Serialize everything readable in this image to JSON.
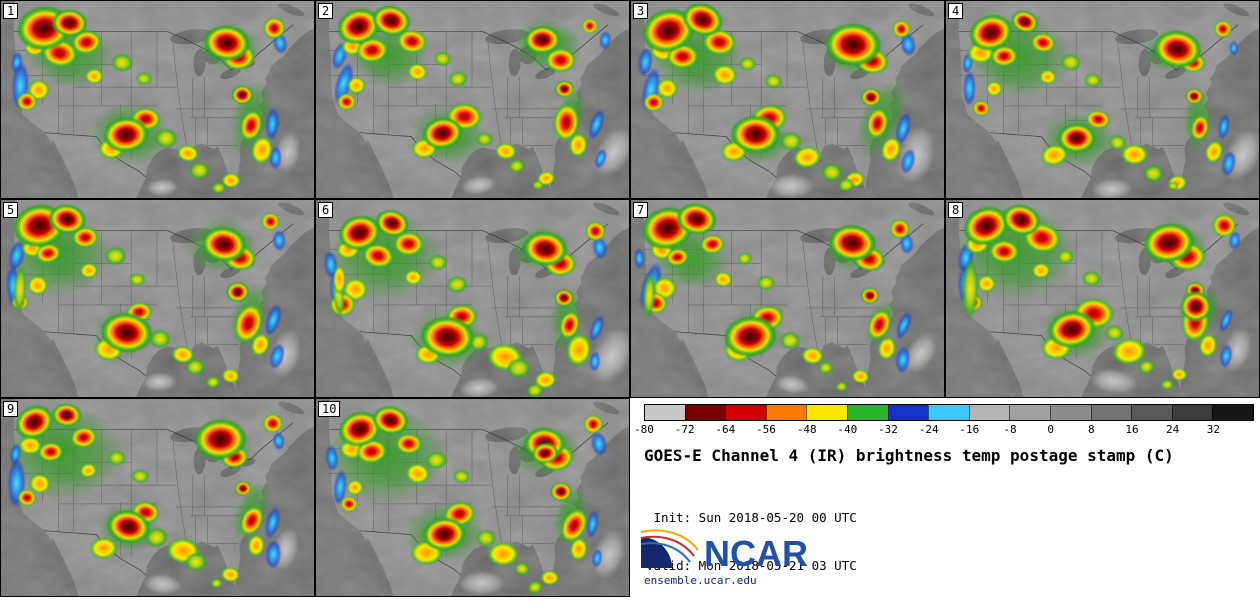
{
  "legend": {
    "init_line": " Init: Sun 2018-05-20 00 UTC",
    "valid_line": "Valid: Mon 2018-05-21 03 UTC",
    "footer": "ensemble.ucar.edu",
    "logo_text": "NCAR"
  },
  "chart_data": {
    "type": "heatmap",
    "description": "10-member ensemble postage-stamp maps of GOES-E Channel 4 IR brightness temperature over the CONUS",
    "title": "GOES-E Channel 4 (IR) brightness temp postage stamp (C)",
    "init": "Sun 2018-05-20 00 UTC",
    "valid": "Mon 2018-05-21 03 UTC",
    "colorbar": {
      "unit": "C",
      "range": [
        -80,
        40
      ],
      "ticks": [
        "-80",
        "-72",
        "-64",
        "-56",
        "-48",
        "-40",
        "-32",
        "-24",
        "-16",
        "-8",
        "0",
        "8",
        "16",
        "24",
        "32"
      ],
      "segment_colors": [
        "#c8c8c8",
        "#780000",
        "#d20000",
        "#ff7800",
        "#ffe600",
        "#28b428",
        "#1432c8",
        "#3cc8ff",
        "#b4b4b4",
        "#a0a0a0",
        "#8c8c8c",
        "#737373",
        "#595959",
        "#3c3c3c",
        "#161616"
      ]
    },
    "jitter": 0.028,
    "panels": [
      {
        "label": "1",
        "dx": 0,
        "dy": 0,
        "s": 1.0
      },
      {
        "label": "2",
        "dx": 0.012,
        "dy": -0.01,
        "s": 0.95
      },
      {
        "label": "3",
        "dx": -0.008,
        "dy": 0.008,
        "s": 1.05
      },
      {
        "label": "4",
        "dx": 0.015,
        "dy": 0.012,
        "s": 0.92
      },
      {
        "label": "5",
        "dx": -0.012,
        "dy": -0.008,
        "s": 1.0,
        "extras": [
          {
            "x": 0.075,
            "y": 0.47,
            "rx": 0.02,
            "ry": 0.12,
            "t": "weak",
            "rot": 5
          }
        ]
      },
      {
        "label": "6",
        "dx": 0.01,
        "dy": 0.015,
        "s": 1.06,
        "extras": [
          {
            "x": 0.075,
            "y": 0.47,
            "rx": 0.02,
            "ry": 0.12,
            "t": "weak",
            "rot": 5
          },
          {
            "x": 0.07,
            "y": 0.38,
            "rx": 0.015,
            "ry": 0.06,
            "t": "mod",
            "rot": 5
          }
        ]
      },
      {
        "label": "7",
        "dx": -0.015,
        "dy": 0.01,
        "s": 0.95,
        "extras": [
          {
            "x": 0.075,
            "y": 0.47,
            "rx": 0.02,
            "ry": 0.12,
            "t": "weak",
            "rot": 5
          }
        ]
      },
      {
        "label": "8",
        "dx": 0.008,
        "dy": -0.012,
        "s": 1.08,
        "extras": [
          {
            "x": 0.075,
            "y": 0.47,
            "rx": 0.02,
            "ry": 0.12,
            "t": "weak",
            "rot": 5
          },
          {
            "x": 0.8,
            "y": 0.55,
            "rx": 0.055,
            "ry": 0.085,
            "t": "core",
            "rot": 10
          }
        ]
      },
      {
        "label": "9",
        "dx": -0.01,
        "dy": -0.01,
        "s": 1.0
      },
      {
        "label": "10",
        "dx": 0.012,
        "dy": 0.006,
        "s": 1.02,
        "extras": [
          {
            "x": 0.73,
            "y": 0.26,
            "rx": 0.05,
            "ry": 0.06,
            "t": "core",
            "rot": 0
          }
        ]
      }
    ],
    "storm_template": [
      {
        "x": 0.93,
        "y": 0.78,
        "rx": 0.05,
        "ry": 0.13,
        "t": "anvil",
        "rot": 24
      },
      {
        "x": 0.52,
        "y": 0.94,
        "rx": 0.06,
        "ry": 0.05,
        "t": "anvil",
        "rot": 0
      },
      {
        "x": 0.21,
        "y": 0.28,
        "rx": 0.15,
        "ry": 0.19,
        "t": "green",
        "rot": 0
      },
      {
        "x": 0.41,
        "y": 0.68,
        "rx": 0.11,
        "ry": 0.13,
        "t": "green",
        "rot": 0
      },
      {
        "x": 0.72,
        "y": 0.24,
        "rx": 0.095,
        "ry": 0.115,
        "t": "green",
        "rot": 0
      },
      {
        "x": 0.8,
        "y": 0.6,
        "rx": 0.05,
        "ry": 0.16,
        "t": "green",
        "rot": 14
      },
      {
        "x": 0.05,
        "y": 0.3,
        "rx": 0.02,
        "ry": 0.065,
        "t": "cirrus",
        "rot": 4
      },
      {
        "x": 0.065,
        "y": 0.44,
        "rx": 0.025,
        "ry": 0.11,
        "t": "cirrus",
        "rot": 6
      },
      {
        "x": 0.875,
        "y": 0.63,
        "rx": 0.018,
        "ry": 0.07,
        "t": "cirrus",
        "rot": 12
      },
      {
        "x": 0.885,
        "y": 0.8,
        "rx": 0.02,
        "ry": 0.06,
        "t": "cirrus",
        "rot": 8
      },
      {
        "x": 0.905,
        "y": 0.22,
        "rx": 0.02,
        "ry": 0.05,
        "t": "cirrus",
        "rot": 0
      },
      {
        "x": 0.1,
        "y": 0.245,
        "rx": 0.04,
        "ry": 0.05,
        "t": "mod",
        "rot": 0
      },
      {
        "x": 0.125,
        "y": 0.44,
        "rx": 0.033,
        "ry": 0.05,
        "t": "mod",
        "rot": 0
      },
      {
        "x": 0.3,
        "y": 0.38,
        "rx": 0.033,
        "ry": 0.045,
        "t": "mod",
        "rot": 0
      },
      {
        "x": 0.345,
        "y": 0.76,
        "rx": 0.045,
        "ry": 0.055,
        "t": "mod",
        "rot": 0
      },
      {
        "x": 0.585,
        "y": 0.78,
        "rx": 0.045,
        "ry": 0.055,
        "t": "mod",
        "rot": 0
      },
      {
        "x": 0.835,
        "y": 0.75,
        "rx": 0.033,
        "ry": 0.07,
        "t": "mod",
        "rot": 14
      },
      {
        "x": 0.735,
        "y": 0.9,
        "rx": 0.028,
        "ry": 0.035,
        "t": "mod",
        "rot": 0
      },
      {
        "x": 0.38,
        "y": 0.3,
        "rx": 0.03,
        "ry": 0.04,
        "t": "weak",
        "rot": 0
      },
      {
        "x": 0.45,
        "y": 0.4,
        "rx": 0.028,
        "ry": 0.035,
        "t": "weak",
        "rot": 0
      },
      {
        "x": 0.52,
        "y": 0.7,
        "rx": 0.033,
        "ry": 0.045,
        "t": "weak",
        "rot": 0
      },
      {
        "x": 0.64,
        "y": 0.85,
        "rx": 0.03,
        "ry": 0.04,
        "t": "weak",
        "rot": 0
      },
      {
        "x": 0.7,
        "y": 0.94,
        "rx": 0.022,
        "ry": 0.028,
        "t": "weak",
        "rot": 0
      },
      {
        "x": 0.285,
        "y": 0.21,
        "rx": 0.05,
        "ry": 0.062,
        "t": "strong",
        "rot": 0
      },
      {
        "x": 0.175,
        "y": 0.27,
        "rx": 0.048,
        "ry": 0.058,
        "t": "strong",
        "rot": 0
      },
      {
        "x": 0.085,
        "y": 0.52,
        "rx": 0.033,
        "ry": 0.048,
        "t": "strong",
        "rot": 0
      },
      {
        "x": 0.46,
        "y": 0.585,
        "rx": 0.05,
        "ry": 0.06,
        "t": "strong",
        "rot": 0
      },
      {
        "x": 0.77,
        "y": 0.3,
        "rx": 0.045,
        "ry": 0.055,
        "t": "strong",
        "rot": 0
      },
      {
        "x": 0.875,
        "y": 0.13,
        "rx": 0.032,
        "ry": 0.05,
        "t": "strong",
        "rot": 0
      },
      {
        "x": 0.8,
        "y": 0.625,
        "rx": 0.036,
        "ry": 0.085,
        "t": "strong",
        "rot": 16
      },
      {
        "x": 0.13,
        "y": 0.14,
        "rx": 0.072,
        "ry": 0.092,
        "t": "core",
        "rot": -15
      },
      {
        "x": 0.225,
        "y": 0.1,
        "rx": 0.058,
        "ry": 0.072,
        "t": "core",
        "rot": 10
      },
      {
        "x": 0.405,
        "y": 0.67,
        "rx": 0.082,
        "ry": 0.1,
        "t": "core",
        "rot": 0
      },
      {
        "x": 0.715,
        "y": 0.22,
        "rx": 0.072,
        "ry": 0.088,
        "t": "core",
        "rot": 0
      },
      {
        "x": 0.775,
        "y": 0.47,
        "rx": 0.032,
        "ry": 0.045,
        "t": "core",
        "rot": 0
      }
    ]
  }
}
